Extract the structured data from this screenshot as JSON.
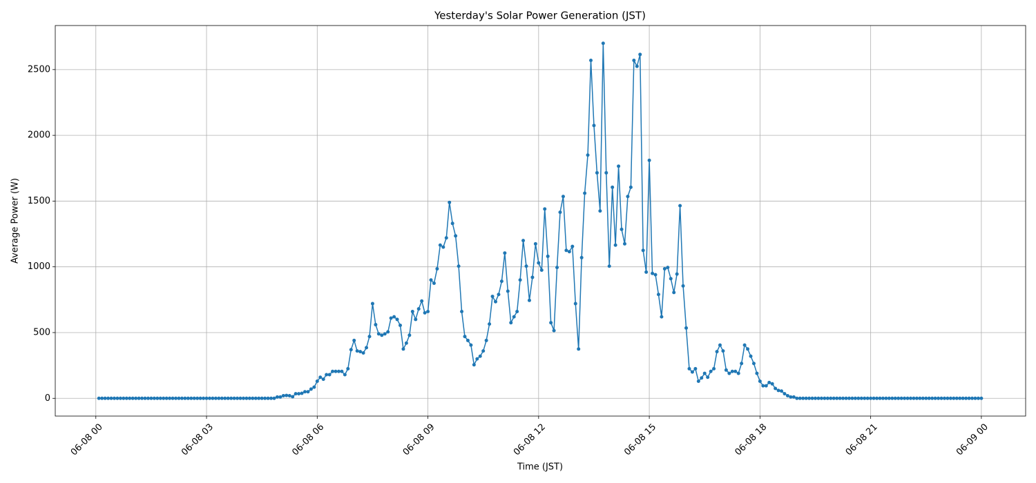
{
  "chart_data": {
    "type": "line",
    "title": "Yesterday's Solar Power Generation (JST)",
    "xlabel": "Time (JST)",
    "ylabel": "Average Power (W)",
    "color": "#1f77b4",
    "grid": true,
    "x": [
      5,
      10,
      15,
      20,
      25,
      30,
      35,
      40,
      45,
      50,
      55,
      60,
      65,
      70,
      75,
      80,
      85,
      90,
      95,
      100,
      105,
      110,
      115,
      120,
      125,
      130,
      135,
      140,
      145,
      150,
      155,
      160,
      165,
      170,
      175,
      180,
      185,
      190,
      195,
      200,
      205,
      210,
      215,
      220,
      225,
      230,
      235,
      240,
      245,
      250,
      255,
      260,
      265,
      270,
      275,
      280,
      285,
      290,
      295,
      300,
      305,
      310,
      315,
      320,
      325,
      330,
      335,
      340,
      345,
      350,
      355,
      360,
      365,
      370,
      375,
      380,
      385,
      390,
      395,
      400,
      405,
      410,
      415,
      420,
      425,
      430,
      435,
      440,
      445,
      450,
      455,
      460,
      465,
      470,
      475,
      480,
      485,
      490,
      495,
      500,
      505,
      510,
      515,
      520,
      525,
      530,
      535,
      540,
      545,
      550,
      555,
      560,
      565,
      570,
      575,
      580,
      585,
      590,
      595,
      600,
      605,
      610,
      615,
      620,
      625,
      630,
      635,
      640,
      645,
      650,
      655,
      660,
      665,
      670,
      675,
      680,
      685,
      690,
      695,
      700,
      705,
      710,
      715,
      720,
      725,
      730,
      735,
      740,
      745,
      750,
      755,
      760,
      765,
      770,
      775,
      780,
      785,
      790,
      795,
      800,
      805,
      810,
      815,
      820,
      825,
      830,
      835,
      840,
      845,
      850,
      855,
      860,
      865,
      870,
      875,
      880,
      885,
      890,
      895,
      900,
      905,
      910,
      915,
      920,
      925,
      930,
      935,
      940,
      945,
      950,
      955,
      960,
      965,
      970,
      975,
      980,
      985,
      990,
      995,
      1000,
      1005,
      1010,
      1015,
      1020,
      1025,
      1030,
      1035,
      1040,
      1045,
      1050,
      1055,
      1060,
      1065,
      1070,
      1075,
      1080,
      1085,
      1090,
      1095,
      1100,
      1105,
      1110,
      1115,
      1120,
      1125,
      1130,
      1135,
      1140,
      1145,
      1150,
      1155,
      1160,
      1165,
      1170,
      1175,
      1180,
      1185,
      1190,
      1195,
      1200,
      1205,
      1210,
      1215,
      1220,
      1225,
      1230,
      1235,
      1240,
      1245,
      1250,
      1255,
      1260,
      1265,
      1270,
      1275,
      1280,
      1285,
      1290,
      1295,
      1300,
      1305,
      1310,
      1315,
      1320,
      1325,
      1330,
      1335,
      1340,
      1345,
      1350,
      1355,
      1360,
      1365,
      1370,
      1375,
      1380,
      1385,
      1390,
      1395,
      1400,
      1405,
      1410,
      1415,
      1420,
      1425,
      1430,
      1435,
      1440
    ],
    "values": [
      0,
      0,
      0,
      0,
      0,
      0,
      0,
      0,
      0,
      0,
      0,
      0,
      0,
      0,
      0,
      0,
      0,
      0,
      0,
      0,
      0,
      0,
      0,
      0,
      0,
      0,
      0,
      0,
      0,
      0,
      0,
      0,
      0,
      0,
      0,
      0,
      0,
      0,
      0,
      0,
      0,
      0,
      0,
      0,
      0,
      0,
      0,
      0,
      0,
      0,
      0,
      0,
      0,
      0,
      0,
      0,
      0,
      0,
      10,
      10,
      20,
      22,
      20,
      12,
      35,
      35,
      38,
      50,
      50,
      70,
      85,
      130,
      160,
      145,
      180,
      180,
      205,
      205,
      205,
      205,
      180,
      225,
      370,
      440,
      360,
      355,
      345,
      385,
      470,
      720,
      560,
      490,
      480,
      490,
      505,
      610,
      620,
      600,
      555,
      375,
      420,
      480,
      660,
      600,
      680,
      740,
      650,
      660,
      900,
      875,
      985,
      1165,
      1150,
      1220,
      1490,
      1330,
      1235,
      1005,
      660,
      470,
      440,
      405,
      255,
      300,
      320,
      360,
      440,
      565,
      775,
      735,
      790,
      890,
      1105,
      815,
      575,
      620,
      660,
      900,
      1200,
      1005,
      745,
      920,
      1175,
      1030,
      975,
      1440,
      1080,
      575,
      515,
      995,
      1415,
      1535,
      1125,
      1115,
      1155,
      720,
      375,
      1070,
      1560,
      1850,
      2570,
      2075,
      1715,
      1425,
      2700,
      1715,
      1005,
      1605,
      1165,
      1765,
      1285,
      1175,
      1535,
      1605,
      2570,
      2525,
      2615,
      1125,
      960,
      1810,
      950,
      940,
      790,
      620,
      985,
      995,
      910,
      805,
      945,
      1465,
      855,
      535,
      225,
      200,
      225,
      130,
      155,
      190,
      160,
      205,
      225,
      355,
      405,
      360,
      215,
      190,
      205,
      205,
      190,
      265,
      405,
      375,
      320,
      265,
      190,
      130,
      95,
      95,
      120,
      110,
      75,
      60,
      55,
      35,
      20,
      10,
      10,
      0,
      0,
      0,
      0,
      0,
      0,
      0,
      0,
      0,
      0,
      0,
      0,
      0,
      0,
      0,
      0,
      0,
      0,
      0,
      0,
      0,
      0,
      0,
      0,
      0,
      0,
      0,
      0,
      0,
      0,
      0,
      0,
      0,
      0,
      0,
      0,
      0,
      0,
      0,
      0,
      0,
      0,
      0,
      0,
      0,
      0,
      0,
      0,
      0,
      0,
      0,
      0,
      0,
      0,
      0,
      0,
      0,
      0,
      0,
      0,
      0
    ],
    "xlim": [
      -66,
      1512
    ],
    "ylim": [
      -135,
      2835
    ],
    "xticks": [
      {
        "value": 0,
        "label": "06-08 00"
      },
      {
        "value": 180,
        "label": "06-08 03"
      },
      {
        "value": 360,
        "label": "06-08 06"
      },
      {
        "value": 540,
        "label": "06-08 09"
      },
      {
        "value": 720,
        "label": "06-08 12"
      },
      {
        "value": 900,
        "label": "06-08 15"
      },
      {
        "value": 1080,
        "label": "06-08 18"
      },
      {
        "value": 1260,
        "label": "06-08 21"
      },
      {
        "value": 1440,
        "label": "06-09 00"
      }
    ],
    "yticks": [
      0,
      500,
      1000,
      1500,
      2000,
      2500
    ]
  }
}
